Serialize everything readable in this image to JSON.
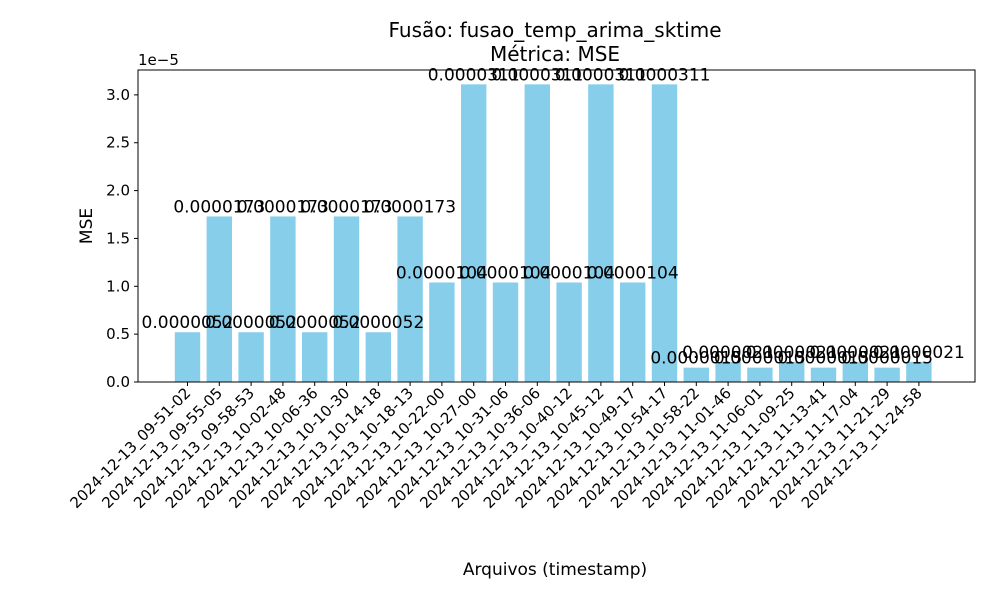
{
  "chart_data": {
    "type": "bar",
    "title": "Fusão: fusao_temp_arima_sktime",
    "subtitle": "Métrica: MSE",
    "xlabel": "Arquivos (timestamp)",
    "ylabel": "MSE",
    "y_offset_label": "1e−5",
    "ylim": [
      0,
      3.26e-05
    ],
    "y_ticks": [
      0,
      5e-06,
      1e-05,
      1.5e-05,
      2e-05,
      2.5e-05,
      3e-05
    ],
    "y_tick_labels": [
      "0.0",
      "0.5",
      "1.0",
      "1.5",
      "2.0",
      "2.5",
      "3.0"
    ],
    "grid": false,
    "bar_color": "#87ceeb",
    "categories": [
      "2024-12-13_09-51-02",
      "2024-12-13_09-55-05",
      "2024-12-13_09-58-53",
      "2024-12-13_10-02-48",
      "2024-12-13_10-06-36",
      "2024-12-13_10-10-30",
      "2024-12-13_10-14-18",
      "2024-12-13_10-18-13",
      "2024-12-13_10-22-00",
      "2024-12-13_10-27-00",
      "2024-12-13_10-31-06",
      "2024-12-13_10-36-06",
      "2024-12-13_10-40-12",
      "2024-12-13_10-45-12",
      "2024-12-13_10-49-17",
      "2024-12-13_10-54-17",
      "2024-12-13_10-58-22",
      "2024-12-13_11-01-46",
      "2024-12-13_11-06-01",
      "2024-12-13_11-09-25",
      "2024-12-13_11-13-41",
      "2024-12-13_11-17-04",
      "2024-12-13_11-21-29",
      "2024-12-13_11-24-58"
    ],
    "values": [
      5.2e-06,
      1.73e-05,
      5.2e-06,
      1.73e-05,
      5.2e-06,
      1.73e-05,
      5.2e-06,
      1.73e-05,
      1.04e-05,
      3.11e-05,
      1.04e-05,
      3.11e-05,
      1.04e-05,
      3.11e-05,
      1.04e-05,
      3.11e-05,
      1.5e-06,
      2.1e-06,
      1.5e-06,
      2.1e-06,
      1.5e-06,
      2.1e-06,
      1.5e-06,
      2.1e-06
    ],
    "value_labels": [
      "0.0000052",
      "0.0000173",
      "0.0000052",
      "0.0000173",
      "0.0000052",
      "0.0000173",
      "0.0000052",
      "0.0000173",
      "0.0000104",
      "0.0000311",
      "0.0000104",
      "0.0000311",
      "0.0000104",
      "0.0000311",
      "0.0000104",
      "0.0000311",
      "0.0000015",
      "0.0000021",
      "0.0000015",
      "0.0000021",
      "0.0000015",
      "0.0000021",
      "0.0000015",
      "0.0000021"
    ]
  }
}
